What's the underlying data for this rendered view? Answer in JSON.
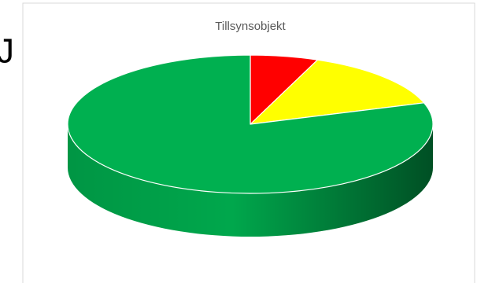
{
  "page": {
    "edge_text": "J"
  },
  "chart_data": {
    "type": "pie3d",
    "title": "Tillsynsobjekt",
    "categories": [
      null,
      null,
      null
    ],
    "values": [
      6,
      14,
      80
    ],
    "colors": [
      "#ff0000",
      "#ffff00",
      "#00b050"
    ]
  }
}
